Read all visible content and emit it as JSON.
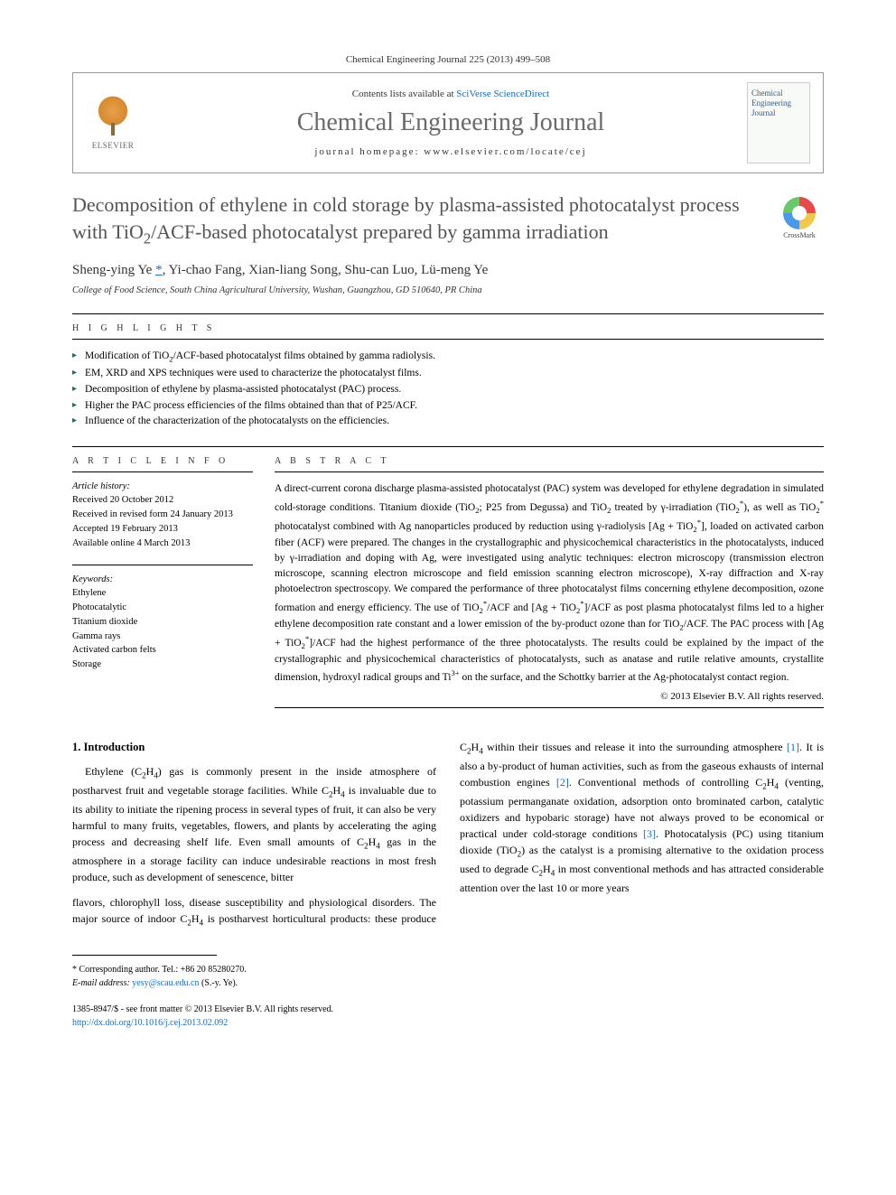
{
  "header": {
    "citation": "Chemical Engineering Journal 225 (2013) 499–508",
    "contents_prefix": "Contents lists available at ",
    "contents_link": "SciVerse ScienceDirect",
    "journal": "Chemical Engineering Journal",
    "homepage_prefix": "journal homepage: ",
    "homepage_url": "www.elsevier.com/locate/cej",
    "publisher": "ELSEVIER",
    "cover_text": "Chemical Engineering Journal"
  },
  "crossmark": "CrossMark",
  "title_html": "Decomposition of ethylene in cold storage by plasma-assisted photocatalyst process with TiO<sub>2</sub>/ACF-based photocatalyst prepared by gamma irradiation",
  "authors_html": "Sheng-ying Ye <a class=\"corr\" href=\"#\">*</a>, Yi-chao Fang, Xian-liang Song, Shu-can Luo, Lü-meng Ye",
  "affiliation": "College of Food Science, South China Agricultural University, Wushan, Guangzhou, GD 510640, PR China",
  "highlights_label": "h i g h l i g h t s",
  "highlights": [
    "Modification of TiO<sub>2</sub>/ACF-based photocatalyst films obtained by gamma radiolysis.",
    "EM, XRD and XPS techniques were used to characterize the photocatalyst films.",
    "Decomposition of ethylene by plasma-assisted photocatalyst (PAC) process.",
    "Higher the PAC process efficiencies of the films obtained than that of P25/ACF.",
    "Influence of the characterization of the photocatalysts on the efficiencies."
  ],
  "article_info_label": "a r t i c l e   i n f o",
  "abstract_label": "a b s t r a c t",
  "history_heading": "Article history:",
  "history": [
    "Received 20 October 2012",
    "Received in revised form 24 January 2013",
    "Accepted 19 February 2013",
    "Available online 4 March 2013"
  ],
  "keywords_heading": "Keywords:",
  "keywords": [
    "Ethylene",
    "Photocatalytic",
    "Titanium dioxide",
    "Gamma rays",
    "Activated carbon felts",
    "Storage"
  ],
  "abstract_html": "A direct-current corona discharge plasma-assisted photocatalyst (PAC) system was developed for ethylene degradation in simulated cold-storage conditions. Titanium dioxide (TiO<sub>2</sub>; P25 from Degussa) and TiO<sub>2</sub> treated by γ-irradiation (TiO<sub>2</sub><sup>*</sup>), as well as TiO<sub>2</sub><sup>*</sup> photocatalyst combined with Ag nanoparticles produced by reduction using γ-radiolysis [Ag + TiO<sub>2</sub><sup>*</sup>], loaded on activated carbon fiber (ACF) were prepared. The changes in the crystallographic and physicochemical characteristics in the photocatalysts, induced by γ-irradiation and doping with Ag, were investigated using analytic techniques: electron microscopy (transmission electron microscope, scanning electron microscope and field emission scanning electron microscope), X-ray diffraction and X-ray photoelectron spectroscopy. We compared the performance of three photocatalyst films concerning ethylene decomposition, ozone formation and energy efficiency. The use of TiO<sub>2</sub><sup>*</sup>/ACF and [Ag + TiO<sub>2</sub><sup>*</sup>]/ACF as post plasma photocatalyst films led to a higher ethylene decomposition rate constant and a lower emission of the by-product ozone than for TiO<sub>2</sub>/ACF. The PAC process with [Ag + TiO<sub>2</sub><sup>*</sup>]/ACF had the highest performance of the three photocatalysts. The results could be explained by the impact of the crystallographic and physicochemical characteristics of photocatalysts, such as anatase and rutile relative amounts, crystallite dimension, hydroxyl radical groups and Ti<sup>3+</sup> on the surface, and the Schottky barrier at the Ag-photocatalyst contact region.",
  "copyright": "© 2013 Elsevier B.V. All rights reserved.",
  "intro_heading": "1. Introduction",
  "intro_p1_html": "Ethylene (C<sub>2</sub>H<sub>4</sub>) gas is commonly present in the inside atmosphere of postharvest fruit and vegetable storage facilities. While C<sub>2</sub>H<sub>4</sub> is invaluable due to its ability to initiate the ripening process in several types of fruit, it can also be very harmful to many fruits, vegetables, flowers, and plants by accelerating the aging process and decreasing shelf life. Even small amounts of C<sub>2</sub>H<sub>4</sub> gas in the atmosphere in a storage facility can induce undesirable reactions in most fresh produce, such as development of senescence, bitter",
  "intro_p2_html": "flavors, chlorophyll loss, disease susceptibility and physiological disorders. The major source of indoor C<sub>2</sub>H<sub>4</sub> is postharvest horticultural products: these produce C<sub>2</sub>H<sub>4</sub> within their tissues and release it into the surrounding atmosphere <a href=\"#\">[1]</a>. It is also a by-product of human activities, such as from the gaseous exhausts of internal combustion engines <a href=\"#\">[2]</a>. Conventional methods of controlling C<sub>2</sub>H<sub>4</sub> (venting, potassium permanganate oxidation, adsorption onto brominated carbon, catalytic oxidizers and hypobaric storage) have not always proved to be economical or practical under cold-storage conditions <a href=\"#\">[3]</a>. Photocatalysis (PC) using titanium dioxide (TiO<sub>2</sub>) as the catalyst is a promising alternative to the oxidation process used to degrade C<sub>2</sub>H<sub>4</sub> in most conventional methods and has attracted considerable attention over the last 10 or more years",
  "footnote_corr_html": "* Corresponding author. Tel.: +86 20 85280270.",
  "footnote_email_label": "E-mail address:",
  "footnote_email": "yesy@scau.edu.cn",
  "footnote_email_suffix": "(S.-y. Ye).",
  "bottom_issn": "1385-8947/$ - see front matter © 2013 Elsevier B.V. All rights reserved.",
  "bottom_doi": "http://dx.doi.org/10.1016/j.cej.2013.02.092",
  "colors": {
    "link": "#1a6bb8",
    "title_grey": "#545454",
    "journal_grey": "#6a6a6a",
    "text": "#000000"
  }
}
